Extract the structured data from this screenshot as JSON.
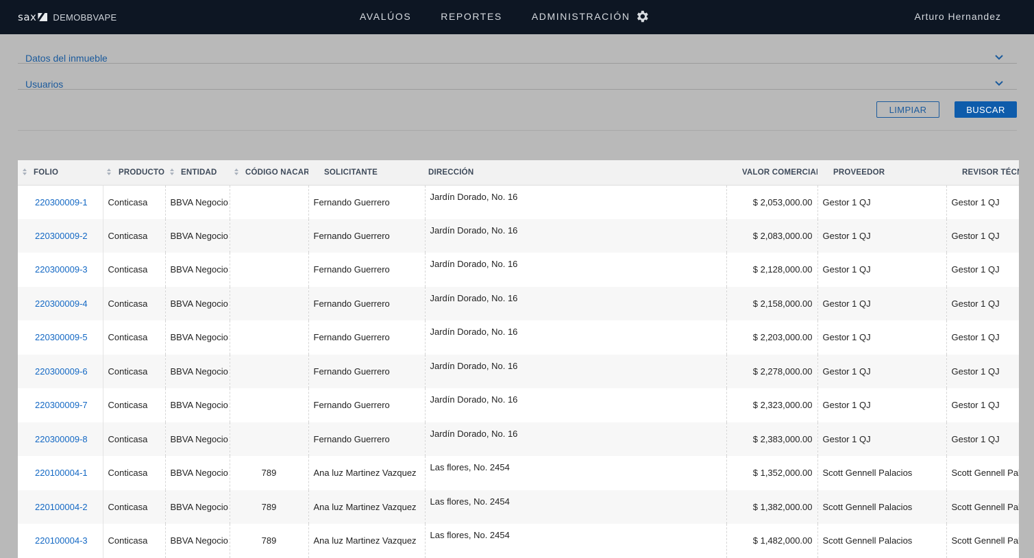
{
  "topbar": {
    "logo_text": "sax",
    "brand_name": "DEMOBBVAPE",
    "nav": [
      "AVALÚOS",
      "REPORTES",
      "ADMINISTRACIÓN"
    ],
    "user": "Arturo Hernandez"
  },
  "filters": {
    "sections": [
      "Datos del inmueble",
      "Usuarios"
    ],
    "clear_label": "LIMPIAR",
    "search_label": "BUSCAR"
  },
  "table": {
    "columns": [
      "FOLIO",
      "PRODUCTO",
      "ENTIDAD",
      "CÓDIGO NACAR",
      "SOLICITANTE",
      "DIRECCIÓN",
      "VALOR COMERCIAL",
      "PROVEEDOR",
      "REVISOR TÉCNICO"
    ],
    "rows": [
      [
        "220300009-1",
        "Conticasa",
        "BBVA Negocio",
        "",
        "Fernando Guerrero",
        "Jardín Dorado, No. 16",
        "$ 2,053,000.00",
        "Gestor 1 QJ",
        "Gestor 1 QJ"
      ],
      [
        "220300009-2",
        "Conticasa",
        "BBVA Negocio",
        "",
        "Fernando Guerrero",
        "Jardín Dorado, No. 16",
        "$ 2,083,000.00",
        "Gestor 1 QJ",
        "Gestor 1 QJ"
      ],
      [
        "220300009-3",
        "Conticasa",
        "BBVA Negocio",
        "",
        "Fernando Guerrero",
        "Jardín Dorado, No. 16",
        "$ 2,128,000.00",
        "Gestor 1 QJ",
        "Gestor 1 QJ"
      ],
      [
        "220300009-4",
        "Conticasa",
        "BBVA Negocio",
        "",
        "Fernando Guerrero",
        "Jardín Dorado, No. 16",
        "$ 2,158,000.00",
        "Gestor 1 QJ",
        "Gestor 1 QJ"
      ],
      [
        "220300009-5",
        "Conticasa",
        "BBVA Negocio",
        "",
        "Fernando Guerrero",
        "Jardín Dorado, No. 16",
        "$ 2,203,000.00",
        "Gestor 1 QJ",
        "Gestor 1 QJ"
      ],
      [
        "220300009-6",
        "Conticasa",
        "BBVA Negocio",
        "",
        "Fernando Guerrero",
        "Jardín Dorado, No. 16",
        "$ 2,278,000.00",
        "Gestor 1 QJ",
        "Gestor 1 QJ"
      ],
      [
        "220300009-7",
        "Conticasa",
        "BBVA Negocio",
        "",
        "Fernando Guerrero",
        "Jardín Dorado, No. 16",
        "$ 2,323,000.00",
        "Gestor 1 QJ",
        "Gestor 1 QJ"
      ],
      [
        "220300009-8",
        "Conticasa",
        "BBVA Negocio",
        "",
        "Fernando Guerrero",
        "Jardín Dorado, No. 16",
        "$ 2,383,000.00",
        "Gestor 1 QJ",
        "Gestor 1 QJ"
      ],
      [
        "220100004-1",
        "Conticasa",
        "BBVA Negocio",
        "789",
        "Ana luz Martinez Vazquez",
        "Las flores, No. 2454",
        "$ 1,352,000.00",
        "Scott Gennell Palacios",
        "Scott Gennell Palacios"
      ],
      [
        "220100004-2",
        "Conticasa",
        "BBVA Negocio",
        "789",
        "Ana luz Martinez Vazquez",
        "Las flores, No. 2454",
        "$ 1,382,000.00",
        "Scott Gennell Palacios",
        "Scott Gennell Palacios"
      ],
      [
        "220100004-3",
        "Conticasa",
        "BBVA Negocio",
        "789",
        "Ana luz Martinez Vazquez",
        "Las flores, No. 2454",
        "$ 1,482,000.00",
        "Scott Gennell Palacios",
        "Scott Gennell Palacios"
      ]
    ]
  }
}
